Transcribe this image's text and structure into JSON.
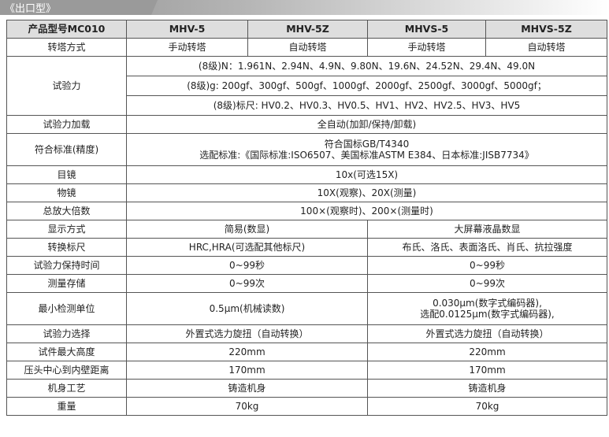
{
  "section_title": "《出口型》",
  "header": [
    "产品型号MC010",
    "MHV-5",
    "MHV-5Z",
    "MHVS-5",
    "MHVS-5Z"
  ],
  "turret": {
    "label": "转塔方式",
    "values": [
      "手动转塔",
      "自动转塔",
      "手动转塔",
      "自动转塔"
    ]
  },
  "force": {
    "label": "试验力",
    "lines": [
      "(8级)N：1.961N、2.94N、4.9N、9.80N、19.6N、24.52N、29.4N、49.0N",
      "(8级)g: 200gf、300gf、500gf、1000gf、2000gf、2500gf、3000gf、5000gf；",
      "(8级)标尺: HV0.2、HV0.3、HV0.5、HV1、HV2、HV2.5、HV3、HV5"
    ]
  },
  "load": {
    "label": "试验力加载",
    "value": "全自动(加卸/保持/卸载)"
  },
  "standard": {
    "label": "符合标准(精度)",
    "line1": "符合国标GB/T4340",
    "line2": "选配标准:《国际标准:ISO6507、美国标准ASTM E384、日本标准:JISB7734》"
  },
  "eyepiece": {
    "label": "目镜",
    "value": "10x(可选15X)"
  },
  "objective": {
    "label": "物镜",
    "value": "10X(观察)、20X(测量)"
  },
  "magnification": {
    "label": "总放大倍数",
    "value": "100×(观察时)、200×(测量时)"
  },
  "rows": [
    {
      "label": "显示方式",
      "a": "简易(数显)",
      "b": "大屏幕液晶数显"
    },
    {
      "label": "转换标尺",
      "a": "HRC,HRA(可选配其他标尺)",
      "b": "布氏、洛氏、表面洛氏、肖氏、抗拉强度"
    },
    {
      "label": "试验力保持时间",
      "a": "0~99秒",
      "b": "0~99秒"
    },
    {
      "label": "测量存储",
      "a": "0~99次",
      "b": "0~99次"
    }
  ],
  "min_unit": {
    "label": "最小检测单位",
    "a": "0.5μm(机械读数)",
    "b1": "0.030μm(数字式编码器),",
    "b2": "选配0.0125μm(数字式编码器),"
  },
  "rows2": [
    {
      "label": "试验力选择",
      "a": "外置式选力旋扭（自动转换）",
      "b": "外置式选力旋扭（自动转换）"
    },
    {
      "label": "试件最大高度",
      "a": "220mm",
      "b": "220mm"
    },
    {
      "label": "压头中心到内壁距离",
      "a": "170mm",
      "b": "170mm"
    },
    {
      "label": "机身工艺",
      "a": "铸造机身",
      "b": "铸造机身"
    },
    {
      "label": "重量",
      "a": "70kg",
      "b": "70kg"
    }
  ]
}
